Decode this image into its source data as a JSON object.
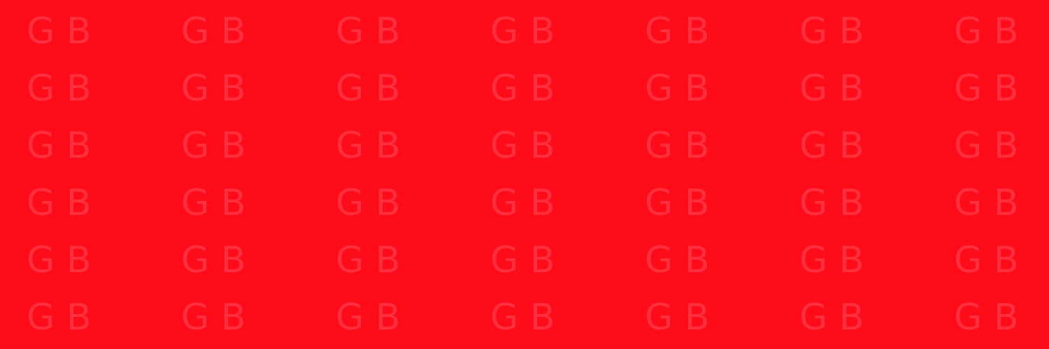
{
  "background": {
    "color": "#ff0c1a",
    "pattern_color": "#ff2f3d",
    "tile_text": "G B",
    "rows": 6,
    "columns": 7
  }
}
